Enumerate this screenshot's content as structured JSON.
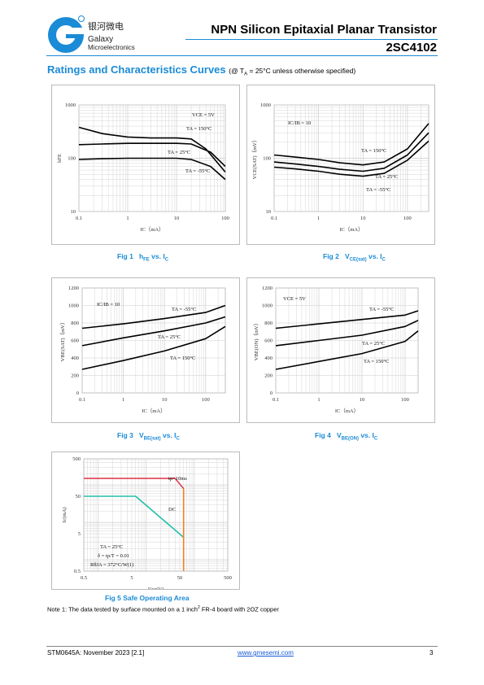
{
  "header": {
    "logo_cn": "银河微电",
    "logo_en1": "Galaxy",
    "logo_en2": "Microelectronics",
    "title": "NPN Silicon Epitaxial Planar Transistor",
    "part": "2SC4102",
    "accent": "#1a8bd6"
  },
  "section": {
    "title": "Ratings and Characteristics Curves",
    "condition": "(@ T",
    "condition_sub": "A",
    "condition_tail": " = 25°C unless otherwise specified)"
  },
  "captions": {
    "fig1": "Fig 1",
    "fig1_main": "h",
    "fig1_sub": "FE",
    "fig1_tail": " vs. I",
    "fig1_tsub": "C",
    "fig2": "Fig 2",
    "fig2_main": "V",
    "fig2_sub": "CE(sat)",
    "fig2_tail": " vs. I",
    "fig2_tsub": "C",
    "fig3": "Fig 3",
    "fig3_main": "V",
    "fig3_sub": "BE(sat)",
    "fig3_tail": " vs. I",
    "fig3_tsub": "C",
    "fig4": "Fig 4",
    "fig4_main": "V",
    "fig4_sub": "BE(ON)",
    "fig4_tail": " vs. I",
    "fig4_tsub": "C",
    "fig5": "Fig 5   Safe Operating Area"
  },
  "note": {
    "text1": "Note 1: The data tested by surface mounted on a 1 inch",
    "sup": "2",
    "text2": " FR-4 board with 2OZ copper"
  },
  "footer": {
    "left": "STM0645A: November 2023 [2.1]",
    "center": "www.gmesemi.com",
    "right": "3"
  },
  "chart_data": [
    {
      "type": "line",
      "id": "fig1",
      "xscale": "log",
      "yscale": "log",
      "xlim": [
        0.1,
        100
      ],
      "ylim": [
        10,
        1000
      ],
      "xticks": [
        "0.1",
        "1",
        "10",
        "100"
      ],
      "yticks": [
        "10",
        "100",
        "1000"
      ],
      "xlabel": "IC（mA）",
      "ylabel": "hFE",
      "annotations": [
        "VCE = 5V",
        "TA = 150°C",
        "TA = 25°C",
        "TA = -55°C"
      ],
      "series": [
        {
          "name": "TA = 150°C",
          "x": [
            0.1,
            0.3,
            1,
            3,
            10,
            20,
            40,
            100
          ],
          "y": [
            380,
            290,
            250,
            240,
            240,
            230,
            150,
            55
          ]
        },
        {
          "name": "TA = 25°C",
          "x": [
            0.1,
            0.3,
            1,
            3,
            10,
            20,
            50,
            100
          ],
          "y": [
            180,
            185,
            190,
            190,
            190,
            185,
            130,
            70
          ]
        },
        {
          "name": "TA = -55°C",
          "x": [
            0.1,
            0.3,
            1,
            3,
            10,
            20,
            50,
            100
          ],
          "y": [
            95,
            98,
            100,
            100,
            100,
            95,
            70,
            40
          ]
        }
      ]
    },
    {
      "type": "line",
      "id": "fig2",
      "xscale": "log",
      "yscale": "log",
      "xlim": [
        0.1,
        300
      ],
      "ylim": [
        10,
        1000
      ],
      "xticks": [
        "0.1",
        "1",
        "10",
        "100"
      ],
      "yticks": [
        "10",
        "100",
        "1000"
      ],
      "xlabel": "IC（mA）",
      "ylabel": "VCE(SAT)（mV）",
      "annotations": [
        "IC/IB = 10",
        "TA = 150°C",
        "TA = 25°C",
        "TA = -55°C"
      ],
      "series": [
        {
          "name": "TA = 150°C",
          "x": [
            0.1,
            0.3,
            1,
            3,
            10,
            30,
            100,
            300
          ],
          "y": [
            115,
            105,
            95,
            82,
            75,
            85,
            150,
            450
          ]
        },
        {
          "name": "TA = 25°C",
          "x": [
            0.1,
            0.3,
            1,
            3,
            10,
            30,
            100,
            300
          ],
          "y": [
            85,
            78,
            70,
            62,
            57,
            65,
            115,
            300
          ]
        },
        {
          "name": "TA = -55°C",
          "x": [
            0.1,
            0.3,
            1,
            3,
            10,
            30,
            100,
            300
          ],
          "y": [
            68,
            63,
            57,
            50,
            46,
            52,
            92,
            210
          ]
        }
      ]
    },
    {
      "type": "line",
      "id": "fig3",
      "xscale": "log",
      "yscale": "linear",
      "xlim": [
        0.1,
        300
      ],
      "ylim": [
        0,
        1200
      ],
      "xticks": [
        "0.1",
        "1",
        "10",
        "100"
      ],
      "yticks": [
        "0",
        "200",
        "400",
        "600",
        "800",
        "1000",
        "1200"
      ],
      "xlabel": "IC（mA）",
      "ylabel": "VBE(SAT)（mV）",
      "annotations": [
        "IC/IB = 10",
        "TA = -55°C",
        "TA = 25°C",
        "TA = 150°C"
      ],
      "series": [
        {
          "name": "TA = -55°C",
          "x": [
            0.1,
            1,
            10,
            100,
            300
          ],
          "y": [
            740,
            790,
            850,
            920,
            1000
          ]
        },
        {
          "name": "TA = 25°C",
          "x": [
            0.1,
            1,
            10,
            100,
            300
          ],
          "y": [
            540,
            630,
            710,
            800,
            870
          ]
        },
        {
          "name": "TA = 150°C",
          "x": [
            0.1,
            1,
            10,
            100,
            300
          ],
          "y": [
            270,
            370,
            480,
            620,
            760
          ]
        }
      ]
    },
    {
      "type": "line",
      "id": "fig4",
      "xscale": "log",
      "yscale": "linear",
      "xlim": [
        0.1,
        200
      ],
      "ylim": [
        0,
        1200
      ],
      "xticks": [
        "0.1",
        "1",
        "10",
        "100"
      ],
      "yticks": [
        "0",
        "200",
        "400",
        "600",
        "800",
        "1000",
        "1200"
      ],
      "xlabel": "IC（mA）",
      "ylabel": "VBE(ON)（mV）",
      "annotations": [
        "VCE = 5V",
        "TA = -55°C",
        "TA = 25°C",
        "TA = 150°C"
      ],
      "series": [
        {
          "name": "TA = -55°C",
          "x": [
            0.1,
            1,
            10,
            100,
            200
          ],
          "y": [
            740,
            790,
            840,
            890,
            940
          ]
        },
        {
          "name": "TA = 25°C",
          "x": [
            0.1,
            1,
            10,
            100,
            200
          ],
          "y": [
            540,
            600,
            660,
            760,
            830
          ]
        },
        {
          "name": "TA = 150°C",
          "x": [
            0.1,
            1,
            10,
            100,
            200
          ],
          "y": [
            270,
            360,
            450,
            590,
            710
          ]
        }
      ]
    },
    {
      "type": "line",
      "id": "fig5",
      "xscale": "log",
      "yscale": "log",
      "xlim": [
        0.5,
        500
      ],
      "ylim": [
        0.5,
        500
      ],
      "xticks": [
        "0.5",
        "5",
        "50",
        "500"
      ],
      "yticks": [
        "0.5",
        "5",
        "50",
        "500"
      ],
      "xlabel": "Vce(V)",
      "ylabel": "Ic(mA)",
      "annotations": [
        "tp=10ms",
        "DC",
        "TA = 25°C",
        "δ = tp/T = 0.01",
        "RθJA = 372°C/W(1)"
      ],
      "series": [
        {
          "name": "tp=10ms",
          "color": "#e04050",
          "x": [
            0.5,
            40,
            60
          ],
          "y": [
            150,
            150,
            80
          ]
        },
        {
          "name": "DC",
          "color": "#20c0a8",
          "x": [
            0.5,
            6,
            60
          ],
          "y": [
            50,
            50,
            4
          ]
        },
        {
          "name": "limit",
          "color": "#f08020",
          "x": [
            60,
            60
          ],
          "y": [
            80,
            0.5
          ]
        }
      ]
    }
  ]
}
